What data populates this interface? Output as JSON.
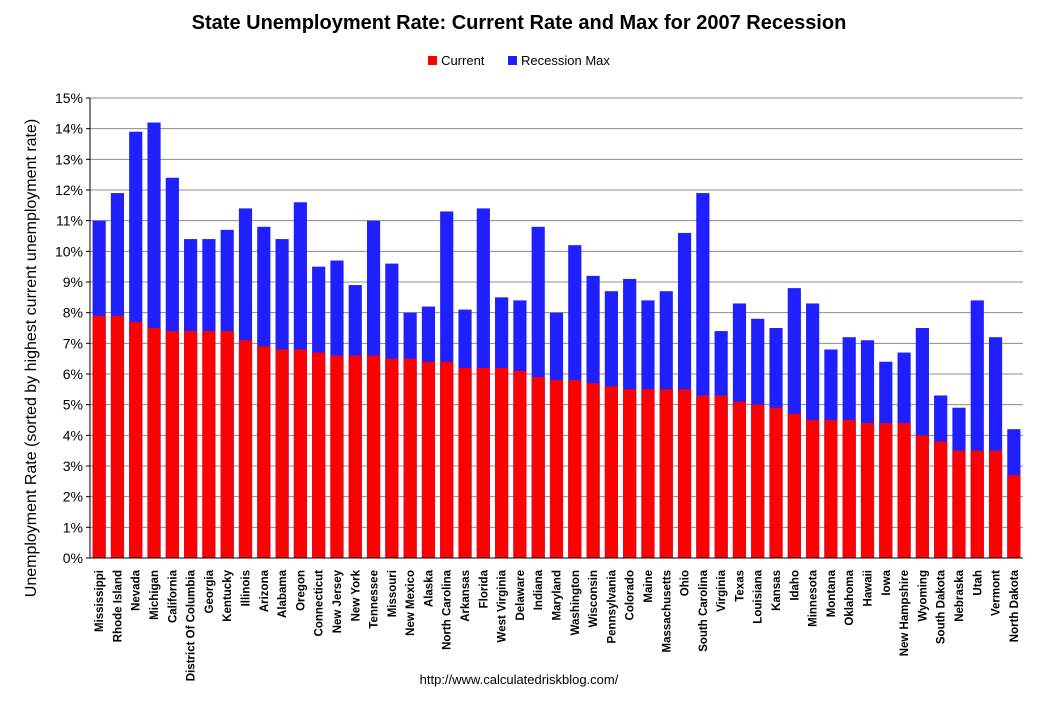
{
  "chart_data": {
    "type": "bar",
    "stacked": "overlay",
    "title": "State Unemployment Rate: Current Rate and Max for 2007 Recession",
    "ylabel": "Unemployment Rate (sorted by highest current unemployment rate)",
    "xlabel": "",
    "ylim": [
      0,
      15
    ],
    "ytick_labels": [
      "0%",
      "1%",
      "2%",
      "3%",
      "4%",
      "5%",
      "6%",
      "7%",
      "8%",
      "9%",
      "10%",
      "11%",
      "12%",
      "13%",
      "14%",
      "15%"
    ],
    "grid": true,
    "legend_position": "top-center",
    "source": "http://www.calculatedriskblog.com/",
    "categories": [
      "Mississippi",
      "Rhode Island",
      "Nevada",
      "Michigan",
      "California",
      "District Of Columbia",
      "Georgia",
      "Kentucky",
      "Illinois",
      "Arizona",
      "Alabama",
      "Oregon",
      "Connecticut",
      "New Jersey",
      "New York",
      "Tennessee",
      "Missouri",
      "New Mexico",
      "Alaska",
      "North Carolina",
      "Arkansas",
      "Florida",
      "West Virginia",
      "Delaware",
      "Indiana",
      "Maryland",
      "Washington",
      "Wisconsin",
      "Pennsylvania",
      "Colorado",
      "Maine",
      "Massachusetts",
      "Ohio",
      "South Carolina",
      "Virginia",
      "Texas",
      "Louisiana",
      "Kansas",
      "Idaho",
      "Minnesota",
      "Montana",
      "Oklahoma",
      "Hawaii",
      "Iowa",
      "New Hampshire",
      "Wyoming",
      "South Dakota",
      "Nebraska",
      "Utah",
      "Vermont",
      "North Dakota"
    ],
    "series": [
      {
        "name": "Current",
        "color": "#ff0000",
        "values": [
          7.9,
          7.9,
          7.7,
          7.5,
          7.4,
          7.4,
          7.4,
          7.4,
          7.1,
          6.9,
          6.8,
          6.8,
          6.7,
          6.6,
          6.6,
          6.6,
          6.5,
          6.5,
          6.4,
          6.4,
          6.2,
          6.2,
          6.2,
          6.1,
          5.9,
          5.8,
          5.8,
          5.7,
          5.6,
          5.5,
          5.5,
          5.5,
          5.5,
          5.3,
          5.3,
          5.1,
          5.0,
          4.9,
          4.7,
          4.5,
          4.5,
          4.5,
          4.4,
          4.4,
          4.4,
          4.0,
          3.8,
          3.5,
          3.5,
          3.5,
          2.7
        ]
      },
      {
        "name": "Recession Max",
        "color": "#1f1fff",
        "values": [
          11.0,
          11.9,
          13.9,
          14.2,
          12.4,
          10.4,
          10.4,
          10.7,
          11.4,
          10.8,
          10.4,
          11.6,
          9.5,
          9.7,
          8.9,
          11.0,
          9.6,
          8.0,
          8.2,
          11.3,
          8.1,
          11.4,
          8.5,
          8.4,
          10.8,
          8.0,
          10.2,
          9.2,
          8.7,
          9.1,
          8.4,
          8.7,
          10.6,
          11.9,
          7.4,
          8.3,
          7.8,
          7.5,
          8.8,
          8.3,
          6.8,
          7.2,
          7.1,
          6.4,
          6.7,
          7.5,
          5.3,
          4.9,
          8.4,
          7.2,
          4.2
        ]
      }
    ]
  }
}
